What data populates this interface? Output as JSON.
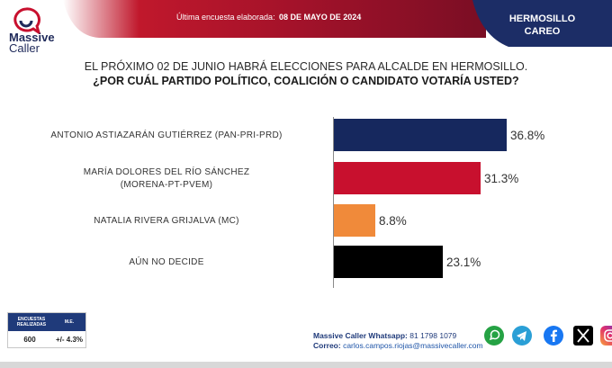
{
  "brand": {
    "line1": "Massive",
    "line2": "Caller"
  },
  "header": {
    "survey_label": "Última encuesta elaborada:",
    "survey_date": "08 DE MAYO DE 2024",
    "region_line1": "HERMOSILLO",
    "region_line2": "CAREO"
  },
  "chart_data": {
    "type": "bar",
    "orientation": "horizontal",
    "title": "EL PRÓXIMO 02 DE JUNIO HABRÁ ELECCIONES PARA ALCALDE EN HERMOSILLO.",
    "subtitle": "¿POR CUÁL PARTIDO POLÍTICO, COALICIÓN O CANDIDATO VOTARÍA USTED?",
    "categories": [
      [
        "ANTONIO ASTIAZARÁN GUTIÉRREZ (PAN-PRI-PRD)"
      ],
      [
        "MARÍA DOLORES DEL RÍO SÁNCHEZ",
        "(MORENA-PT-PVEM)"
      ],
      [
        "NATALIA RIVERA GRIJALVA (MC)"
      ],
      [
        "AÚN NO DECIDE"
      ]
    ],
    "values": [
      36.8,
      31.3,
      8.8,
      23.1
    ],
    "value_labels": [
      "36.8%",
      "31.3%",
      "8.8%",
      "23.1%"
    ],
    "colors": [
      "#16285e",
      "#c8102e",
      "#f08a3a",
      "#000000"
    ],
    "xlim": [
      0,
      40
    ],
    "grid": false,
    "xlabel": "",
    "ylabel": ""
  },
  "footer": {
    "col1_header_line1": "ENCUESTAS",
    "col1_header_line2": "REALIZADAS",
    "col2_header": "M.E.",
    "col1_value": "600",
    "col2_value": "+/- 4.3%",
    "whatsapp_label": "Massive Caller Whatsapp:",
    "whatsapp_number": "81 1798 1079",
    "email_label": "Correo:",
    "email": "carlos.campos.riojas@massivecaller.com"
  },
  "social": [
    "whatsapp-icon",
    "telegram-icon",
    "facebook-icon",
    "x-icon",
    "instagram-icon"
  ],
  "colors": {
    "navy": "#16285e",
    "red": "#c8102e",
    "orange": "#f08a3a",
    "black": "#000000"
  }
}
